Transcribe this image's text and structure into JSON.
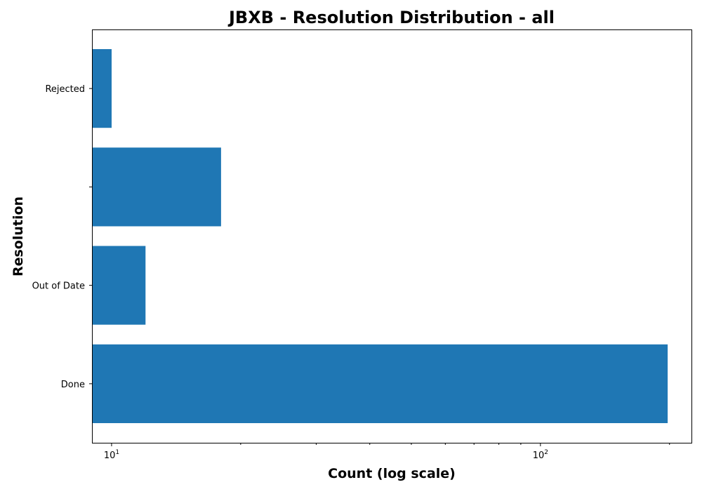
{
  "chart_data": {
    "type": "bar",
    "orientation": "horizontal",
    "title": "JBXB - Resolution Distribution - all",
    "xlabel": "Count (log scale)",
    "ylabel": "Resolution",
    "x_scale": "log",
    "xlim": [
      9,
      225
    ],
    "x_ticks": [
      {
        "value": 10,
        "label": "10^1"
      },
      {
        "value": 100,
        "label": "10^2"
      }
    ],
    "x_minor_ticks": [
      20,
      30,
      40,
      50,
      60,
      70,
      80,
      90,
      200
    ],
    "categories": [
      "Done",
      "Out of Date",
      "",
      "Rejected"
    ],
    "values": [
      198,
      12,
      18,
      10
    ],
    "bar_color": "#1f77b4",
    "grid": false,
    "legend": "none"
  }
}
